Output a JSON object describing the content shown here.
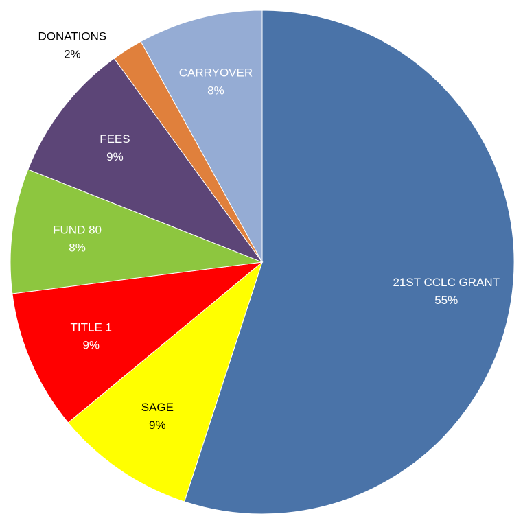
{
  "chart_data": {
    "type": "pie",
    "categories": [
      "21ST CCLC GRANT",
      "SAGE",
      "TITLE 1",
      "FUND 80",
      "FEES",
      "DONATIONS",
      "CARRYOVER"
    ],
    "values": [
      55,
      9,
      9,
      8,
      9,
      2,
      8
    ],
    "value_labels": [
      "55%",
      "9%",
      "9%",
      "8%",
      "9%",
      "2%",
      "8%"
    ],
    "colors": [
      "#4a73a8",
      "#ffff00",
      "#ff0000",
      "#8dc63f",
      "#5c4577",
      "#e0803c",
      "#95acd4"
    ],
    "label_colors": [
      "#ffffff",
      "#000000",
      "#ffffff",
      "#ffffff",
      "#ffffff",
      "#000000",
      "#ffffff"
    ]
  }
}
